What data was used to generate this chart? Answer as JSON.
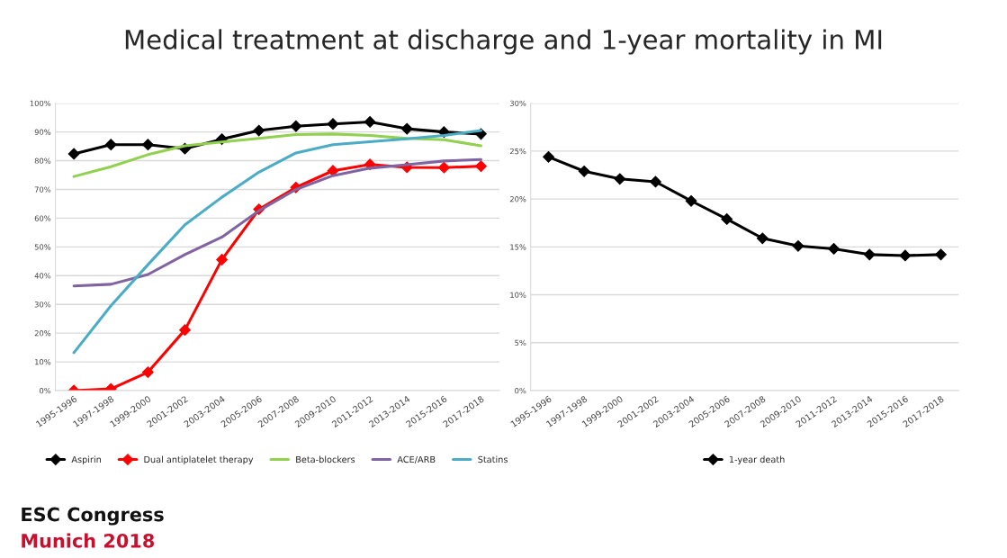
{
  "chart_data": [
    {
      "type": "line",
      "title": "Medical treatment at discharge and 1-year mortality in MI",
      "annotations": [
        "ESC Congress",
        "Munich 2018"
      ],
      "categories": [
        "1995-1996",
        "1997-1998",
        "1999-2000",
        "2001-2002",
        "2003-2004",
        "2005-2006",
        "2007-2008",
        "2009-2010",
        "2011-2012",
        "2013-2014",
        "2015-2016",
        "2017-2018"
      ],
      "series": [
        {
          "name": "Aspirin",
          "color": "#000000",
          "marker": "diamond",
          "values": [
            82.4,
            85.6,
            85.6,
            84.2,
            87.5,
            90.5,
            92.0,
            92.8,
            93.5,
            91.1,
            90.0,
            89.3
          ]
        },
        {
          "name": "Dual antiplatelet therapy",
          "color": "#ff0000",
          "marker": "diamond",
          "values": [
            0.0,
            0.6,
            6.4,
            21.1,
            45.6,
            63.1,
            70.7,
            76.5,
            78.7,
            77.7,
            77.6,
            78.1
          ]
        },
        {
          "name": "Beta-blockers",
          "color": "#92d050",
          "marker": "none",
          "values": [
            74.5,
            77.9,
            82.1,
            85.2,
            86.5,
            87.8,
            89.1,
            89.3,
            88.8,
            87.8,
            87.3,
            85.2
          ]
        },
        {
          "name": "ACE/ARB",
          "color": "#8064a2",
          "marker": "none",
          "values": [
            36.4,
            37.0,
            40.4,
            47.3,
            53.4,
            62.6,
            70.0,
            74.8,
            77.4,
            78.6,
            79.9,
            80.4
          ]
        },
        {
          "name": "Statins",
          "color": "#4bacc6",
          "marker": "none",
          "values": [
            13.2,
            29.5,
            43.8,
            57.7,
            67.3,
            76.0,
            82.7,
            85.6,
            86.6,
            87.6,
            88.8,
            90.5
          ]
        }
      ],
      "ylim": [
        0,
        100
      ],
      "yticks": [
        {
          "value": 0,
          "label": "0%"
        },
        {
          "value": 10,
          "label": "10%"
        },
        {
          "value": 20,
          "label": "20%"
        },
        {
          "value": 30,
          "label": "30%"
        },
        {
          "value": 40,
          "label": "40%"
        },
        {
          "value": 50,
          "label": "50%"
        },
        {
          "value": 60,
          "label": "60%"
        },
        {
          "value": 70,
          "label": "70%"
        },
        {
          "value": 80,
          "label": "80%"
        },
        {
          "value": 90,
          "label": "90%"
        },
        {
          "value": 100,
          "label": "100%"
        }
      ],
      "grid": "y",
      "legend": "bottom",
      "line_style": "solid"
    },
    {
      "type": "line",
      "categories": [
        "1995-1996",
        "1997-1998",
        "1999-2000",
        "2001-2002",
        "2003-2004",
        "2005-2006",
        "2007-2008",
        "2009-2010",
        "2011-2012",
        "2013-2014",
        "2015-2016",
        "2017-2018"
      ],
      "series": [
        {
          "name": "1-year death",
          "color": "#000000",
          "values": [
            24.4,
            22.9,
            22.1,
            21.8,
            19.8,
            17.9,
            15.9,
            15.1,
            14.8,
            14.2,
            14.1,
            14.2
          ]
        }
      ],
      "ylim": [
        0,
        30
      ],
      "yticks": [
        {
          "value": 0,
          "label": "0%"
        },
        {
          "value": 5,
          "label": "5%"
        },
        {
          "value": 10,
          "label": "10%"
        },
        {
          "value": 15,
          "label": "15%"
        },
        {
          "value": 20,
          "label": "20%"
        },
        {
          "value": 25,
          "label": "25%"
        },
        {
          "value": 30,
          "label": "30%"
        }
      ],
      "grid": "y",
      "legend": "bottom",
      "marker": "diamond",
      "line_style": "solid"
    }
  ]
}
